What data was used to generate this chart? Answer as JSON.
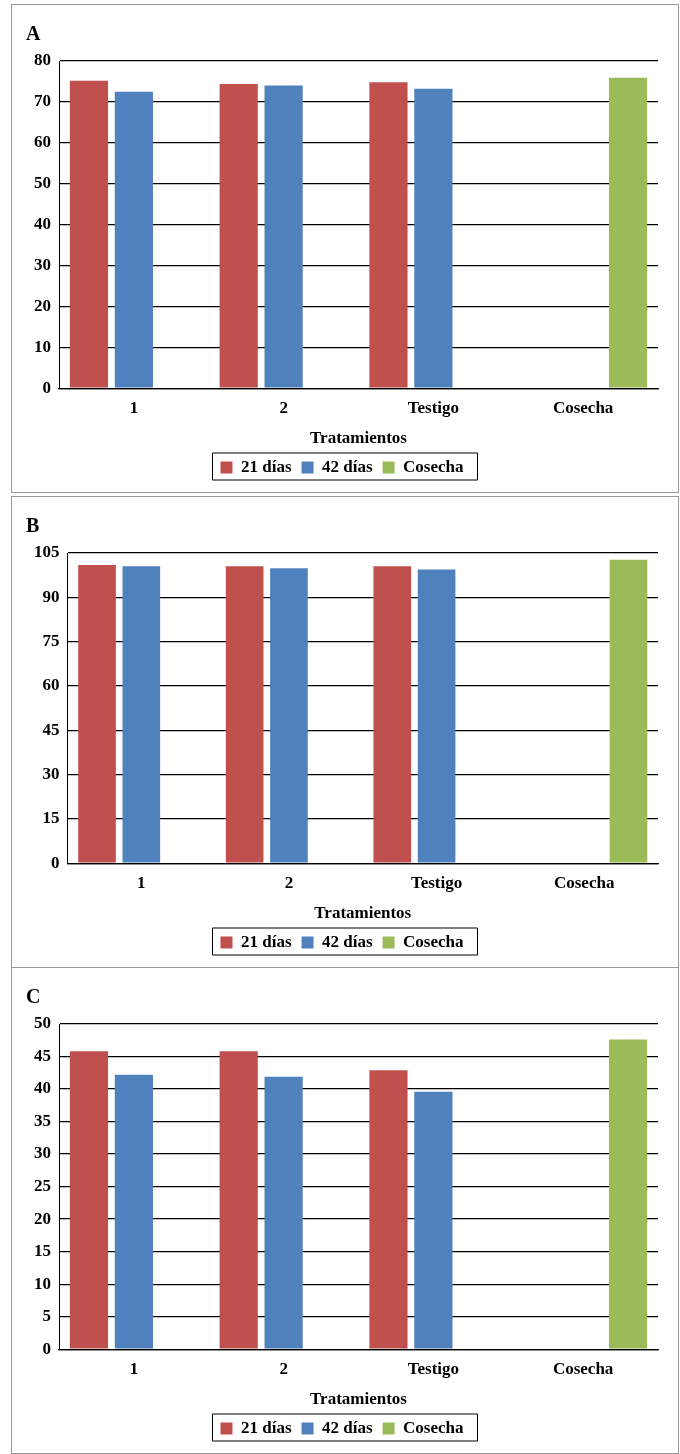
{
  "chart_data": [
    {
      "type": "bar",
      "title": "A",
      "xlabel": "Tratamientos",
      "categories": [
        "1",
        "2",
        "Testigo",
        "Cosecha"
      ],
      "series": [
        {
          "name": "21 días",
          "color": "#c0504d",
          "values": [
            75.2,
            74.4,
            74.8,
            null
          ]
        },
        {
          "name": "42 días",
          "color": "#4f81bd",
          "values": [
            72.5,
            74.0,
            73.2,
            null
          ]
        },
        {
          "name": "Cosecha",
          "color": "#9bbb59",
          "values": [
            null,
            null,
            null,
            75.9
          ]
        }
      ],
      "ylim": [
        0,
        80
      ],
      "yticks": [
        0,
        10,
        20,
        30,
        40,
        50,
        60,
        70,
        80
      ],
      "grid": "y",
      "legend": "bottom"
    },
    {
      "type": "bar",
      "title": "B",
      "xlabel": "Tratamientos",
      "categories": [
        "1",
        "2",
        "Testigo",
        "Cosecha"
      ],
      "series": [
        {
          "name": "21 días",
          "color": "#c0504d",
          "values": [
            100.9,
            100.5,
            100.5,
            null
          ]
        },
        {
          "name": "42 días",
          "color": "#4f81bd",
          "values": [
            100.5,
            99.8,
            99.4,
            null
          ]
        },
        {
          "name": "Cosecha",
          "color": "#9bbb59",
          "values": [
            null,
            null,
            null,
            102.7
          ]
        }
      ],
      "ylim": [
        0,
        105
      ],
      "yticks": [
        0,
        15,
        30,
        45,
        60,
        75,
        90,
        105
      ],
      "grid": "y",
      "legend": "bottom"
    },
    {
      "type": "bar",
      "title": "C",
      "xlabel": "Tratamientos",
      "categories": [
        "1",
        "2",
        "Testigo",
        "Cosecha"
      ],
      "series": [
        {
          "name": "21 días",
          "color": "#c0504d",
          "values": [
            45.8,
            45.8,
            42.9,
            null
          ]
        },
        {
          "name": "42 días",
          "color": "#4f81bd",
          "values": [
            42.2,
            41.9,
            39.6,
            null
          ]
        },
        {
          "name": "Cosecha",
          "color": "#9bbb59",
          "values": [
            null,
            null,
            null,
            47.6
          ]
        }
      ],
      "ylim": [
        0,
        50
      ],
      "yticks": [
        0,
        5,
        10,
        15,
        20,
        25,
        30,
        35,
        40,
        45,
        50
      ],
      "grid": "y",
      "legend": "bottom"
    }
  ]
}
